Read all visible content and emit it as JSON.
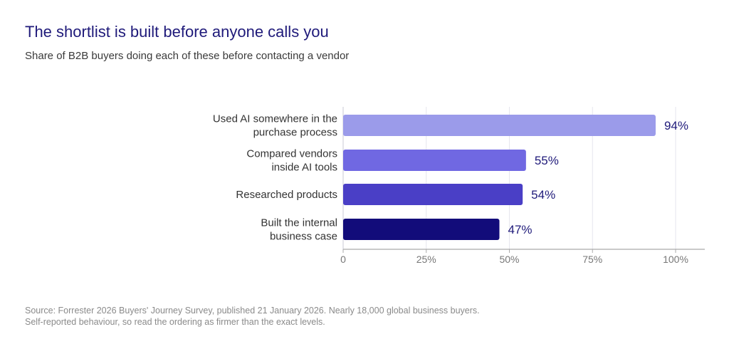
{
  "header": {
    "title": "The shortlist is built before anyone calls you",
    "subtitle": "Share of B2B buyers doing each of these before contacting a vendor"
  },
  "chart_data": {
    "type": "bar",
    "orientation": "horizontal",
    "categories": [
      [
        "Used AI somewhere in the",
        "purchase process"
      ],
      [
        "Compared vendors",
        "inside AI tools"
      ],
      [
        "Researched products"
      ],
      [
        "Built the internal",
        "business case"
      ]
    ],
    "values": [
      94,
      55,
      54,
      47
    ],
    "value_labels": [
      "94%",
      "55%",
      "54%",
      "47%"
    ],
    "bar_colors": [
      "#9b9bea",
      "#7068e2",
      "#4a3fc6",
      "#120c7a"
    ],
    "xlim": [
      0,
      100
    ],
    "ticks": [
      0,
      25,
      50,
      75,
      100
    ],
    "tick_labels": [
      "0",
      "25%",
      "50%",
      "75%",
      "100%"
    ],
    "grid": true,
    "title": "The shortlist is built before anyone calls you",
    "subtitle": "Share of B2B buyers doing each of these before contacting a vendor"
  },
  "footer": {
    "source_line1": "Source: Forrester 2026 Buyers' Journey Survey, published 21 January 2026. Nearly 18,000 global business buyers.",
    "source_line2": "Self-reported behaviour, so read the ordering as firmer than the exact levels."
  }
}
